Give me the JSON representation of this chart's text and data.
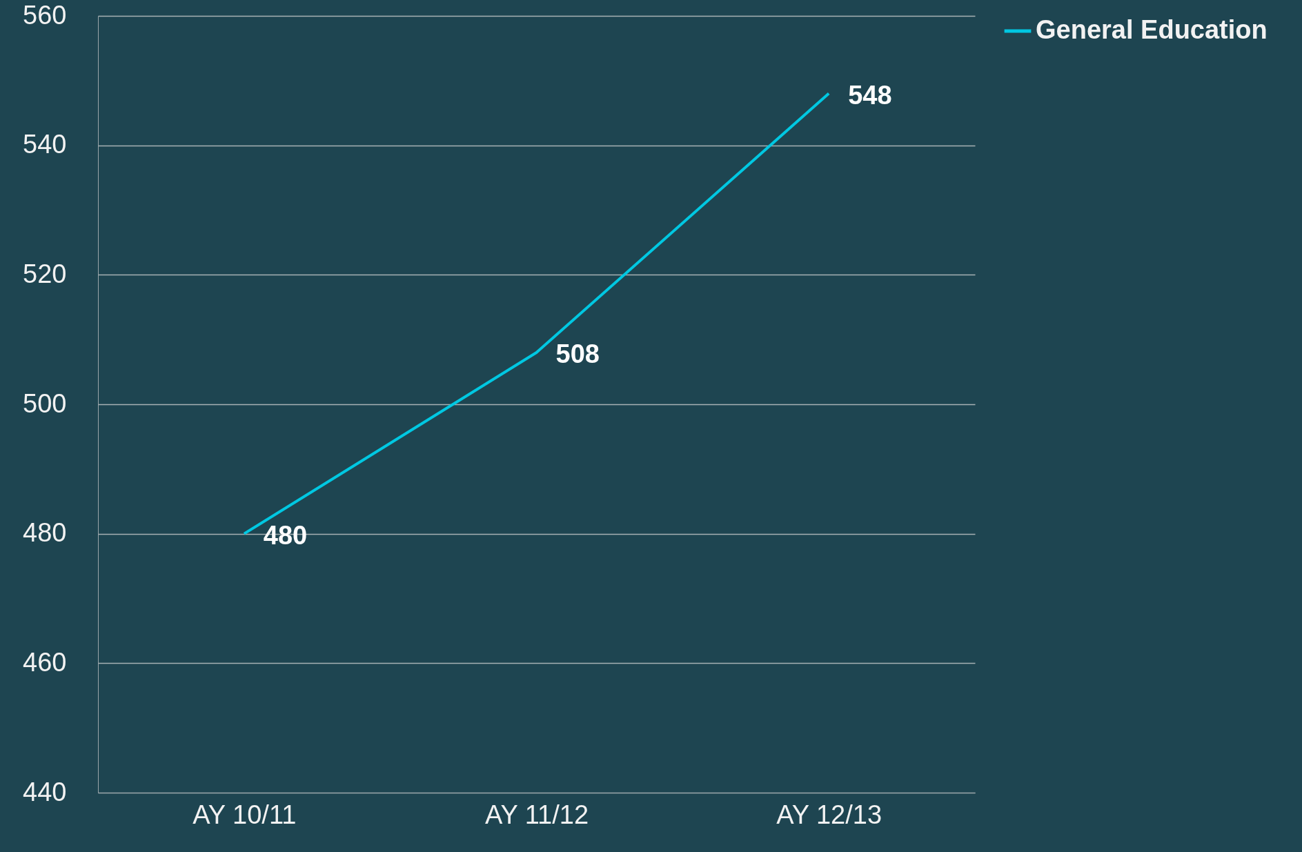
{
  "chart_data": {
    "type": "line",
    "categories": [
      "AY 10/11",
      "AY 11/12",
      "AY 12/13"
    ],
    "series": [
      {
        "name": "General Education",
        "color": "#00c8e2",
        "values": [
          480,
          508,
          548
        ]
      }
    ],
    "ylim": [
      440,
      560
    ],
    "yticks": [
      440,
      460,
      480,
      500,
      520,
      540,
      560
    ],
    "grid": "y",
    "legend": "right",
    "data_labels": true,
    "marker": "none"
  }
}
